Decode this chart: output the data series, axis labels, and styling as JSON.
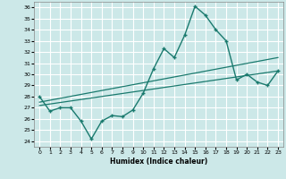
{
  "xlabel": "Humidex (Indice chaleur)",
  "bg_color": "#cce8e8",
  "grid_color": "#ffffff",
  "line_color": "#1a7a6e",
  "xlim": [
    -0.5,
    23.5
  ],
  "ylim": [
    23.5,
    36.5
  ],
  "yticks": [
    24,
    25,
    26,
    27,
    28,
    29,
    30,
    31,
    32,
    33,
    34,
    35,
    36
  ],
  "xticks": [
    0,
    1,
    2,
    3,
    4,
    5,
    6,
    7,
    8,
    9,
    10,
    11,
    12,
    13,
    14,
    15,
    16,
    17,
    18,
    19,
    20,
    21,
    22,
    23
  ],
  "series_x": [
    0,
    1,
    2,
    3,
    4,
    5,
    6,
    7,
    8,
    9,
    10,
    11,
    12,
    13,
    14,
    15,
    16,
    17,
    18,
    19,
    20,
    21,
    22,
    23
  ],
  "series_y": [
    28.0,
    26.7,
    27.0,
    27.0,
    25.8,
    24.2,
    25.8,
    26.3,
    26.2,
    26.8,
    28.3,
    30.5,
    32.3,
    31.5,
    33.5,
    36.1,
    35.3,
    34.0,
    33.0,
    29.5,
    30.0,
    29.3,
    29.0,
    30.3
  ],
  "line1_x": [
    0,
    23
  ],
  "line1_y": [
    27.5,
    31.5
  ],
  "line2_x": [
    0,
    23
  ],
  "line2_y": [
    27.2,
    30.3
  ]
}
